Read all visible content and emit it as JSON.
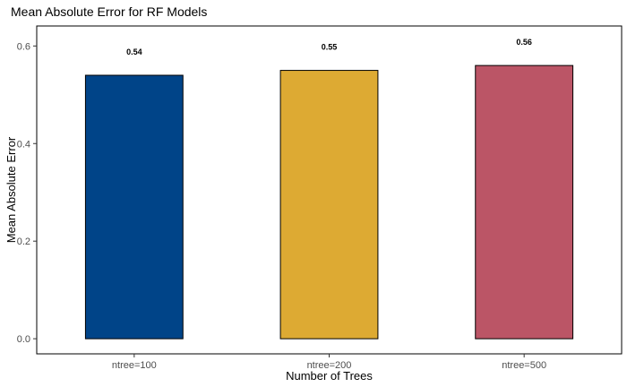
{
  "chart_data": {
    "type": "bar",
    "title": "Mean Absolute Error for RF Models",
    "xlabel": "Number of Trees",
    "ylabel": "Mean Absolute Error",
    "categories": [
      "ntree=100",
      "ntree=200",
      "ntree=500"
    ],
    "values": [
      0.54,
      0.55,
      0.56
    ],
    "data_labels": [
      "0.54",
      "0.55",
      "0.56"
    ],
    "colors": [
      "#004488",
      "#DDAA33",
      "#BB5566"
    ],
    "ylim": [
      -0.031,
      0.641
    ],
    "yticks": [
      0.0,
      0.2,
      0.4,
      0.6
    ],
    "ytick_labels": [
      "0.0",
      "0.2",
      "0.4",
      "0.6"
    ],
    "grid": false,
    "legend": "none"
  }
}
